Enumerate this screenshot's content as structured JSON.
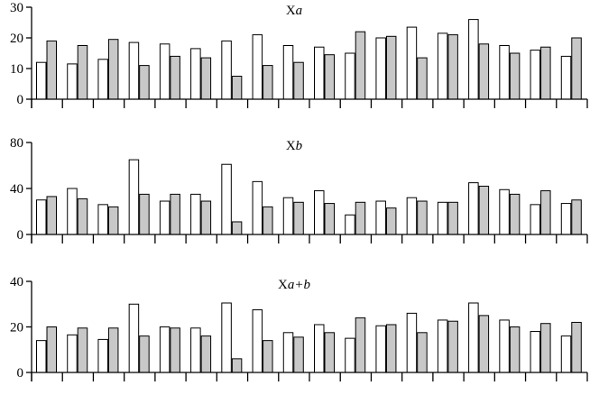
{
  "chart_data": [
    {
      "type": "bar",
      "title": "Xa",
      "title_base": "X",
      "title_suffix": "a",
      "ylim": [
        0,
        30
      ],
      "yticks": [
        0,
        10,
        20,
        30
      ],
      "grid": false,
      "series": [
        {
          "fill": "#ffffff",
          "values": [
            12,
            11.5,
            13,
            18.5,
            18,
            16.5,
            19,
            21,
            17.5,
            17,
            15,
            20,
            23.5,
            21.5,
            26,
            17.5,
            16,
            14
          ]
        },
        {
          "fill": "#c8c8c8",
          "values": [
            19,
            17.5,
            19.5,
            11,
            14,
            13.5,
            7.5,
            11,
            12,
            14.5,
            22,
            20.5,
            13.5,
            21,
            18,
            15,
            17,
            20
          ]
        }
      ]
    },
    {
      "type": "bar",
      "title": "Xb",
      "title_base": "X",
      "title_suffix": "b",
      "ylim": [
        0,
        80
      ],
      "yticks": [
        0,
        40,
        80
      ],
      "grid": false,
      "series": [
        {
          "fill": "#ffffff",
          "values": [
            30,
            40,
            26,
            65,
            29,
            35,
            61,
            46,
            32,
            38,
            17,
            29,
            32,
            28,
            45,
            39,
            26,
            27
          ]
        },
        {
          "fill": "#c8c8c8",
          "values": [
            33,
            31,
            24,
            35,
            35,
            29,
            11,
            24,
            28,
            27,
            28,
            23,
            29,
            28,
            42,
            35,
            38,
            30
          ]
        }
      ]
    },
    {
      "type": "bar",
      "title": "Xa+b",
      "title_base": "X",
      "title_suffix": "a+b",
      "ylim": [
        0,
        40
      ],
      "yticks": [
        0,
        20,
        40
      ],
      "grid": false,
      "series": [
        {
          "fill": "#ffffff",
          "values": [
            14,
            16.5,
            14.5,
            30,
            20,
            19.5,
            30.5,
            27.5,
            17.5,
            21,
            15,
            20.5,
            26,
            23,
            30.5,
            23,
            18,
            16
          ]
        },
        {
          "fill": "#c8c8c8",
          "values": [
            20,
            19.5,
            19.5,
            16,
            19.5,
            16,
            6,
            14,
            15.5,
            17.5,
            24,
            21,
            17.5,
            22.5,
            25,
            20,
            21.5,
            22
          ]
        }
      ]
    }
  ]
}
